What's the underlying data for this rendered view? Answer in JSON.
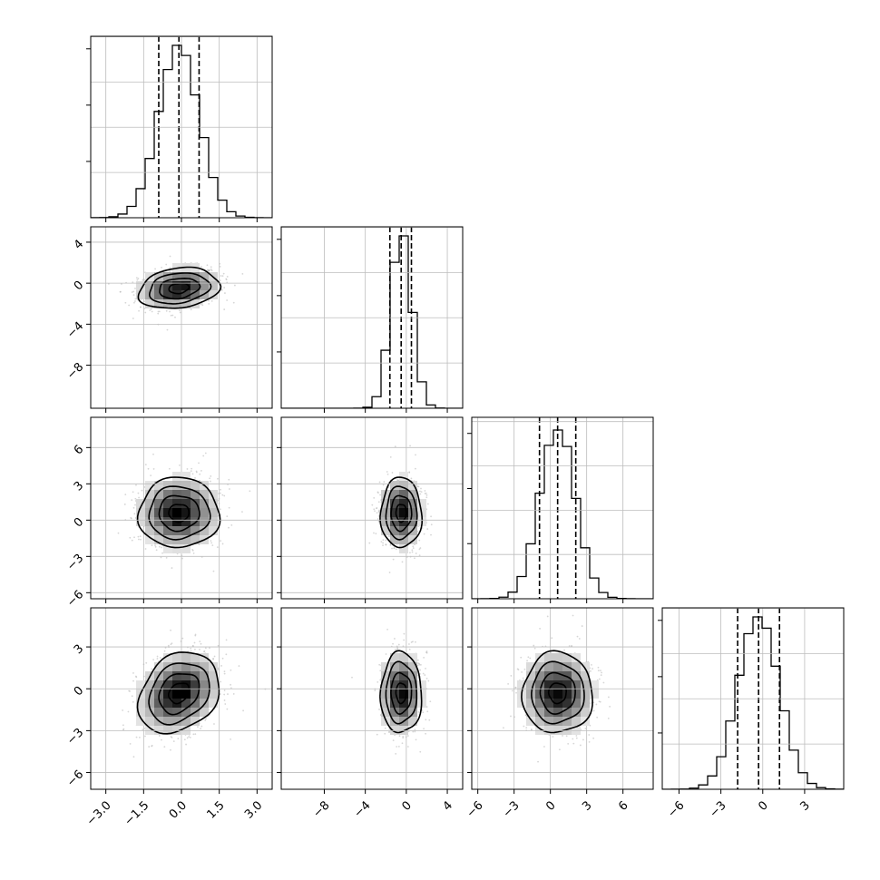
{
  "chart_data": {
    "type": "corner",
    "title": "",
    "grid": true,
    "parameters": [
      {
        "name": "",
        "mean": -0.1,
        "std": 0.8,
        "range": [
          -3.6,
          3.6
        ],
        "ticks": [
          -3.0,
          -1.5,
          0.0,
          1.5,
          3.0
        ],
        "tick_labels": [
          "−3.0",
          "−1.5",
          "0.0",
          "1.5",
          "3.0"
        ],
        "quantiles": [
          -0.9,
          -0.1,
          0.7
        ]
      },
      {
        "name": "",
        "mean": -0.5,
        "std": 1.0,
        "range": [
          -12.2,
          5.5
        ],
        "ticks": [
          -8,
          -4,
          0,
          4
        ],
        "tick_labels": [
          "−8",
          "−4",
          "0",
          "4"
        ],
        "quantiles": [
          -1.6,
          -0.5,
          0.5
        ]
      },
      {
        "name": "",
        "mean": 0.6,
        "std": 1.45,
        "range": [
          -6.5,
          8.5
        ],
        "ticks": [
          -6,
          -3,
          0,
          3,
          6
        ],
        "tick_labels": [
          "−6",
          "−3",
          "0",
          "3",
          "6"
        ],
        "quantiles": [
          -0.9,
          0.6,
          2.1
        ]
      },
      {
        "name": "",
        "mean": -0.3,
        "std": 1.45,
        "range": [
          -7.2,
          5.8
        ],
        "ticks": [
          -6,
          -3,
          0,
          3
        ],
        "tick_labels": [
          "−6",
          "−3",
          "0",
          "3"
        ],
        "quantiles": [
          -1.8,
          -0.3,
          1.2
        ]
      }
    ],
    "quantile_levels": [
      0.16,
      0.5,
      0.84
    ],
    "correlations": {
      "1-0": 0.2,
      "2-0": 0.0,
      "2-1": 0.0,
      "3-0": 0.25,
      "3-1": 0.0,
      "3-2": 0.0
    },
    "hist_bins": 20,
    "hist_peak_fraction": [
      0.95,
      0.95,
      0.93,
      0.95
    ],
    "contour_levels_sigma": [
      0.5,
      1.0,
      1.5,
      2.0
    ]
  }
}
